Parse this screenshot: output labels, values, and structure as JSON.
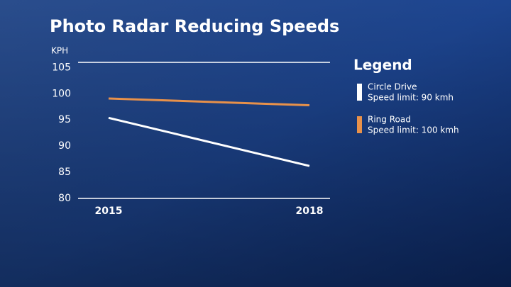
{
  "chart_data": {
    "type": "line",
    "title": "Photo Radar Reducing Speeds",
    "y_label": "KPH",
    "categories": [
      "2015",
      "2018"
    ],
    "series": [
      {
        "name": "Circle Drive",
        "note": "Speed limit: 90 kmh",
        "color": "#ffffff",
        "values": [
          95.4,
          86.2
        ]
      },
      {
        "name": "Ring Road",
        "note": "Speed limit: 100 kmh",
        "color": "#e8914a",
        "values": [
          99.1,
          97.8
        ]
      }
    ],
    "ylim": [
      80,
      106
    ],
    "yticks": [
      80,
      85,
      90,
      95,
      100,
      105
    ],
    "grid": false,
    "legend_title": "Legend",
    "legend": "right"
  }
}
